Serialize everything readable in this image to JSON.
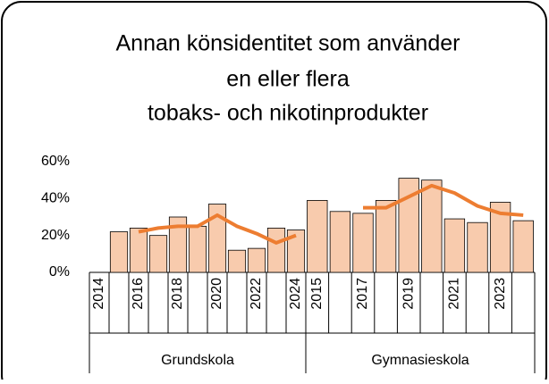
{
  "chart_data": {
    "type": "bar",
    "title": [
      "Annan könsidentitet som använder",
      "en eller flera",
      "tobaks- och nikotinprodukter"
    ],
    "ylim": [
      0,
      60
    ],
    "yticks": [
      {
        "value": 0,
        "label": "0%"
      },
      {
        "value": 20,
        "label": "20%"
      },
      {
        "value": 40,
        "label": "40%"
      },
      {
        "value": 60,
        "label": "60%"
      }
    ],
    "bar_color": "#f8cbad",
    "line_color": "#ed7d31",
    "groups": [
      {
        "label": "Grundskola",
        "categories": [
          "2014",
          null,
          "2016",
          null,
          "2018",
          null,
          "2020",
          null,
          "2022",
          null,
          "2024"
        ],
        "bars": [
          null,
          22,
          24,
          20,
          30,
          25,
          37,
          12,
          13,
          24,
          23
        ],
        "line": [
          null,
          null,
          22,
          24,
          25,
          25,
          31,
          25,
          21,
          16,
          20
        ]
      },
      {
        "label": "Gymnasieskola",
        "categories": [
          "2015",
          null,
          "2017",
          null,
          "2019",
          null,
          "2021",
          null,
          "2023",
          null
        ],
        "bars": [
          39,
          33,
          32,
          39,
          51,
          50,
          29,
          27,
          38,
          28
        ],
        "line": [
          null,
          null,
          35,
          35,
          41,
          47,
          43,
          36,
          32,
          31
        ]
      }
    ]
  }
}
